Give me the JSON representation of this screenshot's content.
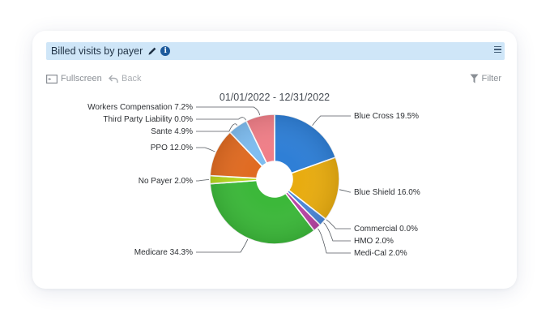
{
  "panel": {
    "title": "Billed visits by payer"
  },
  "toolbar": {
    "fullscreen_label": "Fullscreen",
    "back_label": "Back",
    "filter_label": "Filter"
  },
  "icons": {
    "edit": "pencil-icon",
    "info": "info-icon",
    "menu": "hamburger-menu-icon",
    "fullscreen": "fullscreen-icon",
    "back": "back-arrow-icon",
    "filter": "filter-funnel-icon"
  },
  "chart_data": {
    "type": "pie",
    "donut": true,
    "title": "01/01/2022 - 12/31/2022",
    "slices": [
      {
        "label": "Blue Cross",
        "value": 19.5,
        "display": "Blue Cross 19.5%",
        "color": "#2f7fd6"
      },
      {
        "label": "Blue Shield",
        "value": 16.0,
        "display": "Blue Shield 16.0%",
        "color": "#e8ac10"
      },
      {
        "label": "Commercial",
        "value": 0.0,
        "display": "Commercial 0.0%",
        "color": "#6a6a6a"
      },
      {
        "label": "HMO",
        "value": 2.0,
        "display": "HMO 2.0%",
        "color": "#4a86d8"
      },
      {
        "label": "Medi-Cal",
        "value": 2.0,
        "display": "Medi-Cal 2.0%",
        "color": "#b845a4"
      },
      {
        "label": "Medicare",
        "value": 34.3,
        "display": "Medicare 34.3%",
        "color": "#3cb83a"
      },
      {
        "label": "No Payer",
        "value": 2.0,
        "display": "No Payer 2.0%",
        "color": "#b6d61e"
      },
      {
        "label": "PPO",
        "value": 12.0,
        "display": "PPO 12.0%",
        "color": "#e06b22"
      },
      {
        "label": "Sante",
        "value": 4.9,
        "display": "Sante 4.9%",
        "color": "#7fbdf0"
      },
      {
        "label": "Third Party Liability",
        "value": 0.0,
        "display": "Third Party Liability 0.0%",
        "color": "#d47a28"
      },
      {
        "label": "Workers Compensation",
        "value": 7.2,
        "display": "Workers Compensation 7.2%",
        "color": "#f07f88"
      }
    ]
  }
}
